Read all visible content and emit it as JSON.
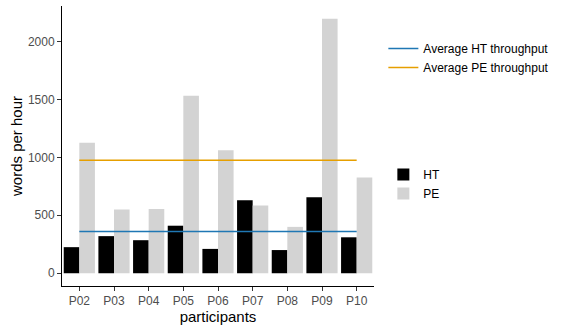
{
  "chart_data": {
    "type": "bar",
    "x_label": "participants",
    "y_label": "words per hour",
    "categories": [
      "P02",
      "P03",
      "P04",
      "P05",
      "P06",
      "P07",
      "P08",
      "P09",
      "P10"
    ],
    "series": [
      {
        "name": "Average HT throughput",
        "type": "line",
        "color": "#1f77b4",
        "values": [
          360,
          360,
          360,
          360,
          360,
          360,
          360,
          360,
          360
        ]
      },
      {
        "name": "Average PE throughput",
        "type": "line",
        "color": "#e69f00",
        "values": [
          975,
          975,
          975,
          975,
          975,
          975,
          975,
          975,
          975
        ]
      },
      {
        "name": "HT",
        "type": "bar",
        "color": "#000000",
        "values": [
          225,
          320,
          285,
          410,
          210,
          630,
          200,
          655,
          310
        ]
      },
      {
        "name": "PE",
        "type": "bar",
        "color": "#d3d3d3",
        "values": [
          1125,
          550,
          555,
          1530,
          1060,
          585,
          400,
          2195,
          825
        ]
      }
    ],
    "ylim": [
      -110,
      2305
    ],
    "yticks": [
      0,
      500,
      1000,
      1500,
      2000
    ],
    "grid": false,
    "legend": "right"
  }
}
